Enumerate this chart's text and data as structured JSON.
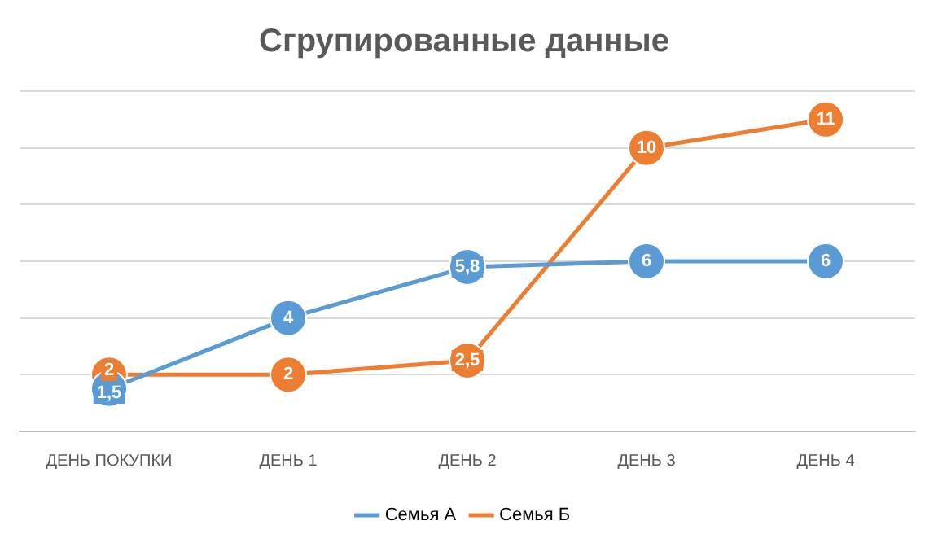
{
  "chart_data": {
    "type": "line",
    "title": "Сгрупированные данные",
    "categories": [
      "ДЕНЬ ПОКУПКИ",
      "ДЕНЬ 1",
      "ДЕНЬ 2",
      "ДЕНЬ 3",
      "ДЕНЬ 4"
    ],
    "series": [
      {
        "name": "Семья А",
        "color": "#5b9bd5",
        "values": [
          1.5,
          4,
          5.8,
          6,
          6
        ],
        "value_labels": [
          "1,5",
          "4",
          "5,8",
          "6",
          "6"
        ]
      },
      {
        "name": "Семья Б",
        "color": "#ed7d31",
        "values": [
          2,
          2,
          2.5,
          10,
          11
        ],
        "value_labels": [
          "2",
          "2",
          "2,5",
          "10",
          "11"
        ]
      }
    ],
    "ylim": [
      0,
      12
    ],
    "yticks": [
      {
        "value": 0,
        "label": null
      },
      {
        "value": 2,
        "label": null
      },
      {
        "value": 4,
        "label": null
      },
      {
        "value": 6,
        "label": null
      },
      {
        "value": 8,
        "label": null
      },
      {
        "value": 10,
        "label": null
      },
      {
        "value": 12,
        "label": null
      }
    ],
    "grid": "y",
    "legend": "bottom",
    "tick_labels": "x",
    "marker": "circle",
    "line_style": "solid"
  }
}
